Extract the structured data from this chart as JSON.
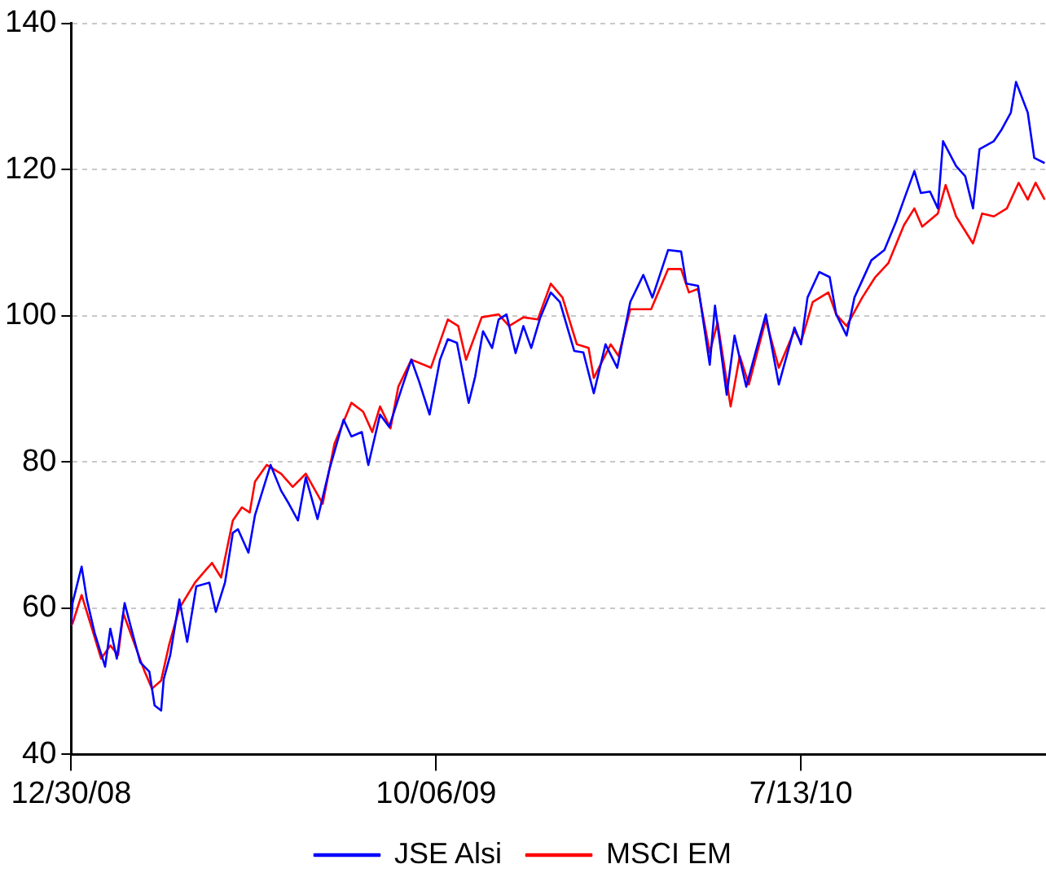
{
  "chart_data": {
    "type": "line",
    "xlim": [
      "2008-12-30",
      "2011-01-17"
    ],
    "xticks": [
      {
        "value": "2008-12-30",
        "label": "12/30/08"
      },
      {
        "value": "2009-10-06",
        "label": "10/06/09"
      },
      {
        "value": "2010-07-13",
        "label": "7/13/10"
      }
    ],
    "ylim": [
      40,
      140
    ],
    "yticks": [
      40,
      60,
      80,
      100,
      120,
      140
    ],
    "grid": "y",
    "legend": "bottom",
    "marker": "none",
    "line_style": "solid",
    "series": [
      {
        "name": "JSE Alsi",
        "color": "#0000ff",
        "x": [
          "2008-12-30",
          "2008-12-31",
          "2009-01-07",
          "2009-01-11",
          "2009-01-17",
          "2009-01-25",
          "2009-01-29",
          "2009-02-03",
          "2009-02-09",
          "2009-02-15",
          "2009-02-21",
          "2009-02-28",
          "2009-03-04",
          "2009-03-09",
          "2009-03-11",
          "2009-03-16",
          "2009-03-23",
          "2009-03-29",
          "2009-04-05",
          "2009-04-15",
          "2009-04-20",
          "2009-04-27",
          "2009-05-03",
          "2009-05-07",
          "2009-05-15",
          "2009-05-20",
          "2009-06-01",
          "2009-06-09",
          "2009-06-15",
          "2009-06-22",
          "2009-06-28",
          "2009-07-07",
          "2009-07-16",
          "2009-07-27",
          "2009-08-02",
          "2009-08-10",
          "2009-08-15",
          "2009-08-24",
          "2009-08-31",
          "2009-09-10",
          "2009-09-17",
          "2009-09-23",
          "2009-10-01",
          "2009-10-09",
          "2009-10-15",
          "2009-10-22",
          "2009-10-31",
          "2009-11-05",
          "2009-11-11",
          "2009-11-18",
          "2009-11-23",
          "2009-11-29",
          "2009-12-06",
          "2009-12-12",
          "2009-12-18",
          "2009-12-25",
          "2010-01-02",
          "2010-01-09",
          "2010-01-20",
          "2010-01-27",
          "2010-02-04",
          "2010-02-13",
          "2010-02-22",
          "2010-03-04",
          "2010-03-14",
          "2010-03-21",
          "2010-04-02",
          "2010-04-12",
          "2010-04-16",
          "2010-04-25",
          "2010-05-04",
          "2010-05-08",
          "2010-05-17",
          "2010-05-23",
          "2010-06-01",
          "2010-06-16",
          "2010-06-26",
          "2010-07-08",
          "2010-07-13",
          "2010-07-18",
          "2010-07-27",
          "2010-08-04",
          "2010-08-09",
          "2010-08-17",
          "2010-08-23",
          "2010-09-05",
          "2010-09-15",
          "2010-09-24",
          "2010-09-30",
          "2010-10-08",
          "2010-10-13",
          "2010-10-20",
          "2010-10-26",
          "2010-10-30",
          "2010-11-09",
          "2010-11-16",
          "2010-11-22",
          "2010-11-27",
          "2010-12-08",
          "2010-12-14",
          "2010-12-21",
          "2010-12-25",
          "2011-01-03",
          "2011-01-08",
          "2011-01-16"
        ],
        "values": [
          57.7,
          60.7,
          65.7,
          61.2,
          56.6,
          52.0,
          57.2,
          53.1,
          60.7,
          56.6,
          52.6,
          51.3,
          46.7,
          46.0,
          50.3,
          53.6,
          61.2,
          55.4,
          63.0,
          63.5,
          59.5,
          63.5,
          70.3,
          70.8,
          67.6,
          72.7,
          79.6,
          76.1,
          74.3,
          72.0,
          77.9,
          72.2,
          78.9,
          85.8,
          83.5,
          84.1,
          79.6,
          86.5,
          84.8,
          90.3,
          94.0,
          91.0,
          86.5,
          94.0,
          96.8,
          96.3,
          88.1,
          91.7,
          97.9,
          95.6,
          99.5,
          100.2,
          94.9,
          98.6,
          95.6,
          99.8,
          103.2,
          101.9,
          95.2,
          95.0,
          89.4,
          96.1,
          92.9,
          101.9,
          105.6,
          102.5,
          109.0,
          108.8,
          104.4,
          104.1,
          93.3,
          101.4,
          89.2,
          97.3,
          90.3,
          100.2,
          90.6,
          98.4,
          96.1,
          102.5,
          106.0,
          105.3,
          100.2,
          97.3,
          102.5,
          107.6,
          109.0,
          112.9,
          115.9,
          119.8,
          116.8,
          117.0,
          114.7,
          123.9,
          120.5,
          119.1,
          114.7,
          122.8,
          123.9,
          125.5,
          127.8,
          132.0,
          127.8,
          121.6,
          120.9
        ]
      },
      {
        "name": "MSCI EM",
        "color": "#ff0000",
        "x": [
          "2008-12-30",
          "2008-12-31",
          "2009-01-07",
          "2009-01-16",
          "2009-01-22",
          "2009-01-29",
          "2009-02-04",
          "2009-02-08",
          "2009-02-17",
          "2009-02-24",
          "2009-03-02",
          "2009-03-09",
          "2009-03-15",
          "2009-03-23",
          "2009-04-04",
          "2009-04-17",
          "2009-04-24",
          "2009-05-03",
          "2009-05-10",
          "2009-05-16",
          "2009-05-20",
          "2009-05-29",
          "2009-06-09",
          "2009-06-18",
          "2009-06-28",
          "2009-07-11",
          "2009-07-16",
          "2009-07-20",
          "2009-08-02",
          "2009-08-11",
          "2009-08-18",
          "2009-08-24",
          "2009-09-01",
          "2009-09-07",
          "2009-09-17",
          "2009-10-02",
          "2009-10-15",
          "2009-10-23",
          "2009-10-29",
          "2009-11-10",
          "2009-11-23",
          "2009-12-01",
          "2009-12-12",
          "2009-12-23",
          "2010-01-02",
          "2010-01-11",
          "2010-01-22",
          "2010-01-31",
          "2010-02-04",
          "2010-02-17",
          "2010-02-23",
          "2010-03-04",
          "2010-03-20",
          "2010-04-02",
          "2010-04-12",
          "2010-04-18",
          "2010-04-25",
          "2010-05-04",
          "2010-05-10",
          "2010-05-20",
          "2010-05-27",
          "2010-06-03",
          "2010-06-16",
          "2010-06-26",
          "2010-07-08",
          "2010-07-13",
          "2010-07-22",
          "2010-08-03",
          "2010-08-09",
          "2010-08-17",
          "2010-08-29",
          "2010-09-08",
          "2010-09-18",
          "2010-09-30",
          "2010-10-08",
          "2010-10-14",
          "2010-10-26",
          "2010-11-01",
          "2010-11-09",
          "2010-11-22",
          "2010-11-29",
          "2010-12-08",
          "2010-12-18",
          "2010-12-27",
          "2011-01-03",
          "2011-01-09",
          "2011-01-16"
        ],
        "values": [
          57.7,
          57.9,
          61.8,
          56.6,
          53.1,
          54.9,
          53.6,
          59.3,
          54.9,
          51.5,
          49.0,
          50.1,
          54.9,
          60.0,
          63.5,
          66.2,
          64.2,
          72.0,
          73.8,
          73.1,
          77.3,
          79.6,
          78.4,
          76.6,
          78.4,
          74.3,
          78.9,
          82.5,
          88.1,
          86.9,
          84.1,
          87.6,
          84.6,
          90.3,
          94.0,
          92.9,
          99.5,
          98.6,
          94.0,
          99.8,
          100.2,
          98.6,
          99.8,
          99.5,
          104.4,
          102.5,
          96.1,
          95.6,
          91.5,
          96.1,
          94.5,
          100.9,
          100.9,
          106.4,
          106.4,
          103.2,
          103.7,
          95.0,
          99.1,
          87.6,
          94.5,
          90.6,
          99.5,
          92.9,
          98.0,
          96.4,
          101.9,
          103.2,
          100.2,
          98.6,
          102.5,
          105.3,
          107.2,
          112.4,
          114.7,
          112.2,
          114.0,
          117.9,
          113.6,
          109.9,
          114.0,
          113.6,
          114.7,
          118.2,
          115.9,
          118.2,
          115.9
        ]
      }
    ]
  }
}
